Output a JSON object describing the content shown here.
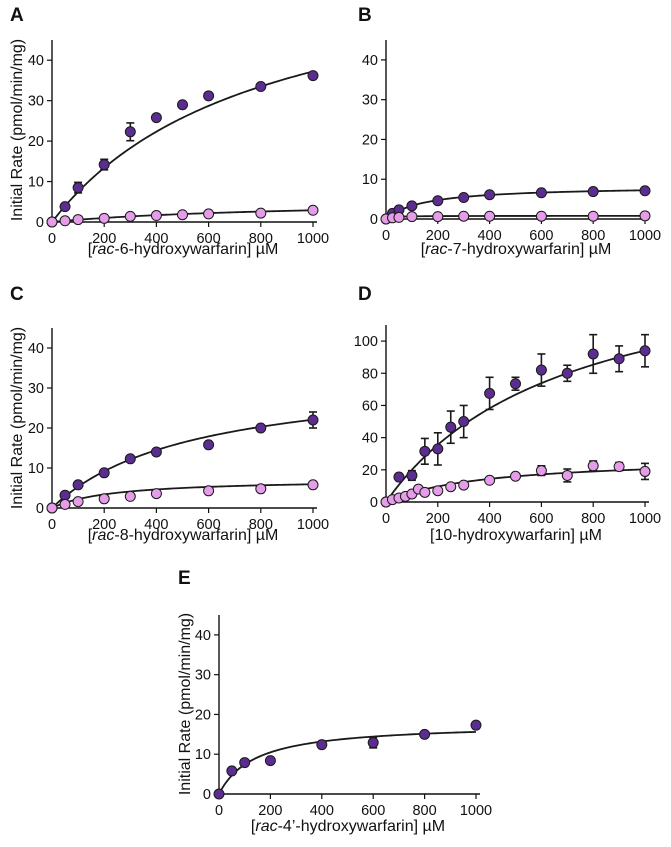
{
  "colors": {
    "dark_series": "#5b2d91",
    "light_series": "#e59ce9",
    "stroke": "#1a1a1a"
  },
  "chart_data": [
    {
      "panel": "A",
      "type": "scatter",
      "xlabel_prefix": "[",
      "xlabel_italic": "rac",
      "xlabel_rest": "-6-hydroxywarfarin] µM",
      "ylabel": "Initial Rate (pmol/min/mg)",
      "xlim": [
        0,
        1000
      ],
      "ylim": [
        0,
        45
      ],
      "xticks": [
        0,
        200,
        400,
        600,
        800,
        1000
      ],
      "yticks": [
        0,
        10,
        20,
        30,
        40
      ],
      "series": [
        {
          "name": "dark",
          "color": "dark",
          "fit": {
            "vmax": 67,
            "km": 800
          },
          "x": [
            0,
            50,
            100,
            200,
            300,
            400,
            500,
            600,
            800,
            1000
          ],
          "y": [
            0,
            3.8,
            8.5,
            14.2,
            22.3,
            25.8,
            29.0,
            31.2,
            33.5,
            36.2
          ],
          "err": [
            0,
            0,
            1.3,
            1.3,
            2.2,
            0,
            0,
            0,
            0,
            0
          ]
        },
        {
          "name": "light",
          "color": "light",
          "fit": {
            "vmax": 5.5,
            "km": 900
          },
          "x": [
            0,
            50,
            100,
            200,
            300,
            400,
            500,
            600,
            800,
            1000
          ],
          "y": [
            0,
            0.3,
            0.6,
            0.9,
            1.4,
            1.6,
            1.8,
            2.0,
            2.2,
            2.9
          ],
          "err": [
            0,
            0,
            0,
            0,
            0,
            0,
            0,
            0,
            0,
            0
          ]
        }
      ]
    },
    {
      "panel": "B",
      "type": "scatter",
      "xlabel_prefix": "[",
      "xlabel_italic": "rac",
      "xlabel_rest": "-7-hydroxywarfarin] µM",
      "ylabel": "",
      "xlim": [
        0,
        1000
      ],
      "ylim": [
        0,
        45
      ],
      "xticks": [
        0,
        200,
        400,
        600,
        800,
        1000
      ],
      "yticks": [
        0,
        10,
        20,
        30,
        40
      ],
      "series": [
        {
          "name": "dark",
          "color": "dark",
          "fit": {
            "vmax": 8.3,
            "km": 150
          },
          "x": [
            0,
            25,
            50,
            100,
            200,
            300,
            400,
            600,
            800,
            1000
          ],
          "y": [
            0,
            1.4,
            2.3,
            3.3,
            4.6,
            5.4,
            6.1,
            6.6,
            6.9,
            7.1
          ],
          "err": [
            0,
            0,
            0,
            0,
            0,
            0,
            0,
            0,
            0,
            0
          ]
        },
        {
          "name": "light",
          "color": "light",
          "fit": {
            "vmax": 0.8,
            "km": 20
          },
          "x": [
            0,
            25,
            50,
            100,
            200,
            300,
            400,
            600,
            800,
            1000
          ],
          "y": [
            0,
            0.3,
            0.4,
            0.6,
            0.6,
            0.7,
            0.7,
            0.7,
            0.7,
            0.8
          ],
          "err": [
            0,
            0,
            0,
            0,
            0,
            0,
            0,
            0,
            0,
            0
          ]
        }
      ]
    },
    {
      "panel": "C",
      "type": "scatter",
      "xlabel_prefix": "[",
      "xlabel_italic": "rac",
      "xlabel_rest": "-8-hydroxywarfarin] µM",
      "ylabel": "Initial Rate (pmol/min/mg)",
      "xlim": [
        0,
        1000
      ],
      "ylim": [
        0,
        45
      ],
      "xticks": [
        0,
        200,
        400,
        600,
        800,
        1000
      ],
      "yticks": [
        0,
        10,
        20,
        30,
        40
      ],
      "series": [
        {
          "name": "dark",
          "color": "dark",
          "fit": {
            "vmax": 34,
            "km": 540
          },
          "x": [
            0,
            50,
            100,
            200,
            300,
            400,
            600,
            800,
            1000
          ],
          "y": [
            0,
            3.2,
            5.8,
            8.8,
            12.3,
            14.0,
            15.8,
            20.0,
            22.0
          ],
          "err": [
            0,
            0,
            0,
            0,
            0,
            0,
            0,
            0,
            2.0
          ]
        },
        {
          "name": "light",
          "color": "light",
          "fit": {
            "vmax": 7.3,
            "km": 230
          },
          "x": [
            0,
            50,
            100,
            200,
            300,
            400,
            600,
            800,
            1000
          ],
          "y": [
            0,
            0.9,
            1.6,
            2.3,
            2.9,
            3.6,
            4.3,
            4.8,
            5.8
          ],
          "err": [
            0,
            0,
            0,
            0,
            0,
            0,
            0,
            0,
            0
          ]
        }
      ]
    },
    {
      "panel": "D",
      "type": "scatter",
      "xlabel_prefix": "[10-hydroxywarfarin] µM",
      "xlabel_italic": "",
      "xlabel_rest": "",
      "ylabel": "",
      "xlim": [
        0,
        1000
      ],
      "ylim": [
        0,
        110
      ],
      "xticks": [
        0,
        200,
        400,
        600,
        800,
        1000
      ],
      "yticks": [
        0,
        20,
        40,
        60,
        80,
        100
      ],
      "series": [
        {
          "name": "dark",
          "color": "dark",
          "fit": {
            "vmax": 160,
            "km": 700
          },
          "x": [
            0,
            50,
            100,
            150,
            200,
            250,
            300,
            400,
            500,
            600,
            700,
            800,
            900,
            1000
          ],
          "y": [
            0,
            15.5,
            16.5,
            31.5,
            33,
            46.5,
            50,
            67.5,
            73.5,
            82,
            80,
            92,
            89,
            94
          ],
          "err": [
            0,
            0,
            3,
            8,
            10,
            10,
            10,
            10,
            4,
            10,
            5,
            12,
            8,
            10
          ]
        },
        {
          "name": "light",
          "color": "light",
          "fit": {
            "vmax": 28,
            "km": 380
          },
          "x": [
            0,
            25,
            50,
            75,
            100,
            125,
            150,
            200,
            250,
            300,
            400,
            500,
            600,
            700,
            800,
            900,
            1000
          ],
          "y": [
            0,
            1.5,
            2.5,
            3.5,
            5,
            8,
            6,
            7,
            9.5,
            10.5,
            13.5,
            16,
            19.5,
            16.5,
            22.5,
            22,
            19
          ],
          "err": [
            0,
            0,
            0,
            0,
            0,
            0,
            0,
            0,
            0,
            0,
            0,
            0,
            3,
            4,
            3,
            2.5,
            5
          ]
        }
      ]
    },
    {
      "panel": "E",
      "type": "scatter",
      "xlabel_prefix": "[",
      "xlabel_italic": "rac",
      "xlabel_rest": "-4’-hydroxywarfarin] µM",
      "ylabel": "Initial Rate (pmol/min/mg)",
      "xlim": [
        0,
        1000
      ],
      "ylim": [
        0,
        45
      ],
      "xticks": [
        0,
        200,
        400,
        600,
        800,
        1000
      ],
      "yticks": [
        0,
        10,
        20,
        30,
        40
      ],
      "series": [
        {
          "name": "dark",
          "color": "dark",
          "fit": {
            "vmax": 17.8,
            "km": 140
          },
          "x": [
            0,
            50,
            100,
            200,
            400,
            600,
            800,
            1000
          ],
          "y": [
            0,
            5.8,
            7.9,
            8.4,
            12.4,
            12.9,
            15.0,
            17.3
          ],
          "err": [
            0,
            0,
            0,
            0,
            0,
            1.3,
            0,
            0
          ]
        }
      ]
    }
  ]
}
